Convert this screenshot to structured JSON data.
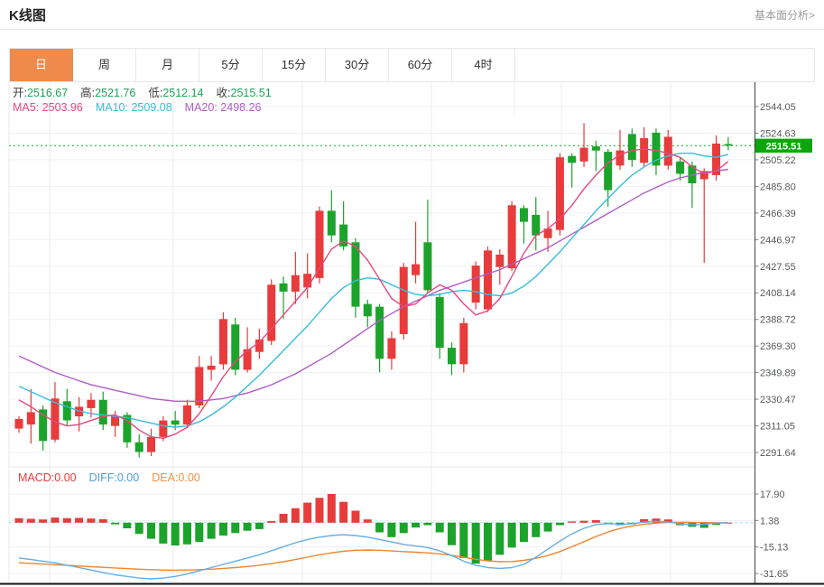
{
  "header": {
    "title": "K线图",
    "link": "基本面分析>"
  },
  "tabs": {
    "items": [
      {
        "label": "日",
        "selected": true
      },
      {
        "label": "周",
        "selected": false
      },
      {
        "label": "月",
        "selected": false
      },
      {
        "label": "5分",
        "selected": false
      },
      {
        "label": "15分",
        "selected": false
      },
      {
        "label": "30分",
        "selected": false
      },
      {
        "label": "60分",
        "selected": false
      },
      {
        "label": "4时",
        "selected": false
      }
    ]
  },
  "indicators": {
    "ohlc": [
      {
        "label": "开:",
        "value": "2516.67"
      },
      {
        "label": "高:",
        "value": "2521.76"
      },
      {
        "label": "低:",
        "value": "2512.14"
      },
      {
        "label": "收:",
        "value": "2515.51"
      }
    ],
    "ma": [
      {
        "label": "MA5:",
        "value": "2503.96",
        "color": "#e8487e"
      },
      {
        "label": "MA10:",
        "value": "2509.08",
        "color": "#36bddb"
      },
      {
        "label": "MA20:",
        "value": "2498.26",
        "color": "#af5cc8"
      }
    ]
  },
  "macd_header": [
    {
      "label": "MACD:",
      "value": "0.00",
      "color": "#e83b3b"
    },
    {
      "label": "DIFF:",
      "value": "0.00",
      "color": "#4d9fdc"
    },
    {
      "label": "DEA:",
      "value": "0.00",
      "color": "#f5913c"
    }
  ],
  "price_tag": {
    "value": "2515.51"
  },
  "chart_data": {
    "type": "candlestick+macd",
    "title": "K线图 daily candles with MA5/MA10/MA20 overlay and MACD sub-chart",
    "legend_position": "top-left",
    "grid": true,
    "price_axis_labels": [
      "2544.05",
      "2524.63",
      "2505.22",
      "2485.80",
      "2466.39",
      "2446.97",
      "2427.55",
      "2408.14",
      "2388.72",
      "2369.30",
      "2349.89",
      "2330.47",
      "2311.05",
      "2291.64"
    ],
    "price_axis_range": [
      2291.64,
      2544.05
    ],
    "macd_axis_labels": [
      "17.90",
      "1.38",
      "-15.13",
      "-31.65"
    ],
    "macd_axis_range": [
      -31.65,
      17.9
    ],
    "current_price": 2515.51,
    "candles_ohlc": [
      [
        2309,
        2318,
        2306,
        2316
      ],
      [
        2312,
        2338,
        2298,
        2321
      ],
      [
        2323,
        2326,
        2293,
        2300
      ],
      [
        2301,
        2343,
        2299,
        2331
      ],
      [
        2329,
        2338,
        2311,
        2315
      ],
      [
        2318,
        2332,
        2307,
        2325
      ],
      [
        2324,
        2335,
        2317,
        2330
      ],
      [
        2330,
        2336,
        2308,
        2312
      ],
      [
        2311,
        2322,
        2303,
        2318
      ],
      [
        2319,
        2321,
        2295,
        2299
      ],
      [
        2299,
        2305,
        2288,
        2292
      ],
      [
        2292,
        2309,
        2289,
        2303
      ],
      [
        2303,
        2318,
        2300,
        2315
      ],
      [
        2315,
        2322,
        2308,
        2312
      ],
      [
        2312,
        2330,
        2310,
        2326
      ],
      [
        2326,
        2362,
        2324,
        2354
      ],
      [
        2352,
        2362,
        2344,
        2355
      ],
      [
        2356,
        2394,
        2352,
        2389
      ],
      [
        2385,
        2390,
        2348,
        2352
      ],
      [
        2352,
        2383,
        2350,
        2367
      ],
      [
        2365,
        2382,
        2360,
        2374
      ],
      [
        2373,
        2418,
        2370,
        2414
      ],
      [
        2415,
        2420,
        2389,
        2409
      ],
      [
        2409,
        2438,
        2400,
        2421
      ],
      [
        2412,
        2437,
        2404,
        2422
      ],
      [
        2419,
        2471,
        2415,
        2468
      ],
      [
        2468,
        2483,
        2445,
        2450
      ],
      [
        2458,
        2475,
        2439,
        2442
      ],
      [
        2445,
        2448,
        2390,
        2398
      ],
      [
        2400,
        2403,
        2383,
        2391
      ],
      [
        2398,
        2400,
        2350,
        2360
      ],
      [
        2360,
        2380,
        2352,
        2375
      ],
      [
        2378,
        2430,
        2374,
        2427
      ],
      [
        2421,
        2460,
        2415,
        2429
      ],
      [
        2445,
        2476,
        2408,
        2410
      ],
      [
        2405,
        2408,
        2360,
        2368
      ],
      [
        2368,
        2372,
        2348,
        2356
      ],
      [
        2356,
        2390,
        2350,
        2386
      ],
      [
        2401,
        2431,
        2396,
        2428
      ],
      [
        2396,
        2442,
        2394,
        2439
      ],
      [
        2427,
        2440,
        2414,
        2436
      ],
      [
        2426,
        2475,
        2424,
        2472
      ],
      [
        2470,
        2472,
        2444,
        2460
      ],
      [
        2465,
        2478,
        2439,
        2450
      ],
      [
        2448,
        2468,
        2438,
        2455
      ],
      [
        2454,
        2510,
        2450,
        2507
      ],
      [
        2508,
        2510,
        2485,
        2503
      ],
      [
        2504,
        2532,
        2500,
        2514
      ],
      [
        2515,
        2519,
        2497,
        2512
      ],
      [
        2511,
        2513,
        2471,
        2483
      ],
      [
        2501,
        2527,
        2498,
        2512
      ],
      [
        2524,
        2528,
        2500,
        2505
      ],
      [
        2503,
        2529,
        2500,
        2521
      ],
      [
        2525,
        2528,
        2494,
        2501
      ],
      [
        2501,
        2527,
        2498,
        2522
      ],
      [
        2504,
        2507,
        2490,
        2495
      ],
      [
        2501,
        2504,
        2470,
        2488
      ],
      [
        2491,
        2499,
        2430,
        2497
      ],
      [
        2494,
        2523,
        2490,
        2517
      ],
      [
        2516.67,
        2521.76,
        2512.14,
        2515.51
      ]
    ],
    "ma5": [
      2330,
      2325,
      2319,
      2314,
      2311,
      2312,
      2315,
      2318,
      2319,
      2315,
      2308,
      2303,
      2302,
      2305,
      2310,
      2320,
      2333,
      2347,
      2358,
      2366,
      2372,
      2382,
      2392,
      2402,
      2412,
      2426,
      2440,
      2446,
      2442,
      2432,
      2418,
      2404,
      2398,
      2400,
      2408,
      2414,
      2410,
      2400,
      2392,
      2395,
      2404,
      2420,
      2437,
      2450,
      2455,
      2462,
      2472,
      2484,
      2494,
      2503,
      2509,
      2512,
      2513,
      2512,
      2510,
      2507,
      2500,
      2495,
      2497,
      2503.96
    ],
    "ma10": [
      2340,
      2336,
      2332,
      2328,
      2325,
      2322,
      2320,
      2319,
      2318,
      2317,
      2315,
      2313,
      2311,
      2310,
      2311,
      2314,
      2319,
      2325,
      2332,
      2340,
      2348,
      2357,
      2366,
      2375,
      2384,
      2394,
      2404,
      2412,
      2417,
      2419,
      2418,
      2414,
      2410,
      2407,
      2406,
      2407,
      2409,
      2410,
      2409,
      2407,
      2406,
      2408,
      2413,
      2420,
      2429,
      2438,
      2448,
      2458,
      2468,
      2477,
      2486,
      2494,
      2500,
      2505,
      2508,
      2510,
      2510,
      2508,
      2507,
      2509.08
    ],
    "ma20": [
      2362,
      2358,
      2354,
      2350,
      2347,
      2344,
      2341,
      2339,
      2337,
      2335,
      2333,
      2331,
      2330,
      2329,
      2329,
      2329,
      2330,
      2331,
      2333,
      2335,
      2338,
      2341,
      2345,
      2349,
      2354,
      2359,
      2364,
      2370,
      2376,
      2382,
      2388,
      2393,
      2398,
      2402,
      2406,
      2410,
      2413,
      2416,
      2419,
      2422,
      2425,
      2429,
      2433,
      2437,
      2441,
      2446,
      2451,
      2456,
      2461,
      2466,
      2471,
      2476,
      2481,
      2485,
      2489,
      2492,
      2494,
      2496,
      2497,
      2498.26
    ],
    "macd_bars": [
      2.8,
      2.4,
      2.0,
      3.2,
      2.8,
      3.0,
      2.6,
      2.2,
      -1.0,
      -3.5,
      -7,
      -10,
      -13,
      -14.2,
      -13.5,
      -12,
      -10,
      -8,
      -6.5,
      -5,
      -4,
      1.0,
      5.5,
      9,
      12.5,
      15.5,
      17.9,
      13,
      7.5,
      2.0,
      -6,
      -9,
      -6.5,
      -3,
      -1.5,
      -6,
      -14,
      -22,
      -25.5,
      -24,
      -20,
      -15.5,
      -12,
      -9,
      -5.5,
      -1.5,
      0.8,
      1.2,
      1.6,
      -1.0,
      -1.6,
      -1.0,
      2.2,
      2.6,
      2.0,
      -1.6,
      -2.6,
      -3.2,
      -1.4,
      0.0
    ],
    "diff_line": [
      -22,
      -23,
      -24,
      -25,
      -26.5,
      -28,
      -29.5,
      -31,
      -32.5,
      -33.5,
      -34.5,
      -35,
      -34.5,
      -33.5,
      -32,
      -30,
      -28,
      -26,
      -24,
      -22,
      -20,
      -17.5,
      -15,
      -12.5,
      -10.5,
      -9,
      -8,
      -7.5,
      -8,
      -9,
      -10.5,
      -12,
      -13.5,
      -14.5,
      -15.5,
      -17.5,
      -20.5,
      -24,
      -26.5,
      -28,
      -28.5,
      -28,
      -26,
      -21.5,
      -16.5,
      -11.5,
      -7,
      -3.5,
      -1.2,
      -0.5,
      -1.0,
      -0.6,
      0.4,
      0.9,
      0.4,
      -0.6,
      -1.3,
      -1.0,
      -0.3,
      0.0
    ],
    "dea_line": [
      -25,
      -25.4,
      -25.8,
      -26.2,
      -26.6,
      -27,
      -27.4,
      -27.8,
      -28.2,
      -28.6,
      -29,
      -29.3,
      -29.5,
      -29.6,
      -29.5,
      -29.3,
      -29,
      -28.5,
      -28,
      -27.3,
      -26.5,
      -25.5,
      -24.3,
      -23,
      -21.5,
      -20,
      -18.8,
      -17.8,
      -17.2,
      -17,
      -17.2,
      -17.6,
      -18,
      -18.4,
      -18.8,
      -19.4,
      -20.3,
      -21.5,
      -22.8,
      -23.8,
      -24.3,
      -24.2,
      -23.5,
      -22.2,
      -20.5,
      -18,
      -15,
      -11.8,
      -8.6,
      -5.8,
      -3.6,
      -2.0,
      -1.0,
      -0.3,
      0.2,
      0.3,
      0.2,
      0.1,
      0.0,
      0.0
    ],
    "colors": {
      "up": "#e83b3b",
      "down": "#1ca32b",
      "ma5": "#e8487e",
      "ma10": "#36bddb",
      "ma20": "#af5cc8",
      "diff": "#63aee8",
      "dea": "#f0862f",
      "price_line": "#2fb53c",
      "price_tag_bg": "#0ca60c",
      "tab_selected_bg": "#ef8a4c",
      "grid": "#edf0f4",
      "vgrid": "#e7ebf2",
      "axis_text": "#57595c",
      "axis_line": "#444444",
      "bottom_line": "#111111"
    }
  }
}
